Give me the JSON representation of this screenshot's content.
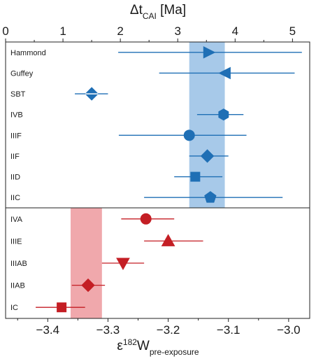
{
  "chart_data": {
    "type": "scatter",
    "top_axis": {
      "label_base": "Δt",
      "label_sub": "CAI",
      "label_unit": " [Ma]",
      "range": [
        0,
        5.3
      ],
      "ticks": [
        "0",
        "1",
        "2",
        "3",
        "4",
        "5"
      ]
    },
    "bottom_axis": {
      "label_base": "ε",
      "label_sup": "182",
      "label_main": "W",
      "label_sub": "pre-exposure",
      "range": [
        -3.47,
        -2.965
      ],
      "ticks": [
        "-3.4",
        "-3.3",
        "-3.2",
        "-3.1",
        "-3.0"
      ]
    },
    "bands": [
      {
        "panel": "iron",
        "from": -3.165,
        "to": -3.106,
        "color": "#a7c9e9"
      },
      {
        "panel": "magmatic",
        "from": -3.362,
        "to": -3.31,
        "color": "#f0a8ac"
      }
    ],
    "panels": [
      {
        "name": "iron",
        "color": "#1f6fb5",
        "series": [
          {
            "name": "Hammond",
            "value": -3.133,
            "err_low": -3.283,
            "err_high": -2.978,
            "marker": "triangle-right"
          },
          {
            "name": "Guffey",
            "value": -3.105,
            "err_low": -3.215,
            "err_high": -2.99,
            "marker": "triangle-left"
          },
          {
            "name": "SBT",
            "value": -3.327,
            "err_low": -3.355,
            "err_high": -3.3,
            "marker": "diamond-split"
          },
          {
            "name": "IVB",
            "value": -3.108,
            "err_low": -3.152,
            "err_high": -3.075,
            "marker": "hexagon"
          },
          {
            "name": "IIIF",
            "value": -3.165,
            "err_low": -3.282,
            "err_high": -3.07,
            "marker": "circle"
          },
          {
            "name": "IIF",
            "value": -3.135,
            "err_low": -3.165,
            "err_high": -3.1,
            "marker": "diamond"
          },
          {
            "name": "IID",
            "value": -3.155,
            "err_low": -3.19,
            "err_high": -3.11,
            "marker": "square"
          },
          {
            "name": "IIC",
            "value": -3.13,
            "err_low": -3.24,
            "err_high": -3.01,
            "marker": "pentagon"
          }
        ]
      },
      {
        "name": "magmatic",
        "color": "#c41e24",
        "series": [
          {
            "name": "IVA",
            "value": -3.237,
            "err_low": -3.278,
            "err_high": -3.19,
            "marker": "circle"
          },
          {
            "name": "IIIE",
            "value": -3.2,
            "err_low": -3.24,
            "err_high": -3.142,
            "marker": "triangle-up"
          },
          {
            "name": "IIIAB",
            "value": -3.275,
            "err_low": -3.31,
            "err_high": -3.24,
            "marker": "triangle-down"
          },
          {
            "name": "IIAB",
            "value": -3.333,
            "err_low": -3.36,
            "err_high": -3.305,
            "marker": "diamond"
          },
          {
            "name": "IC",
            "value": -3.377,
            "err_low": -3.42,
            "err_high": -3.338,
            "marker": "square"
          }
        ]
      }
    ]
  }
}
